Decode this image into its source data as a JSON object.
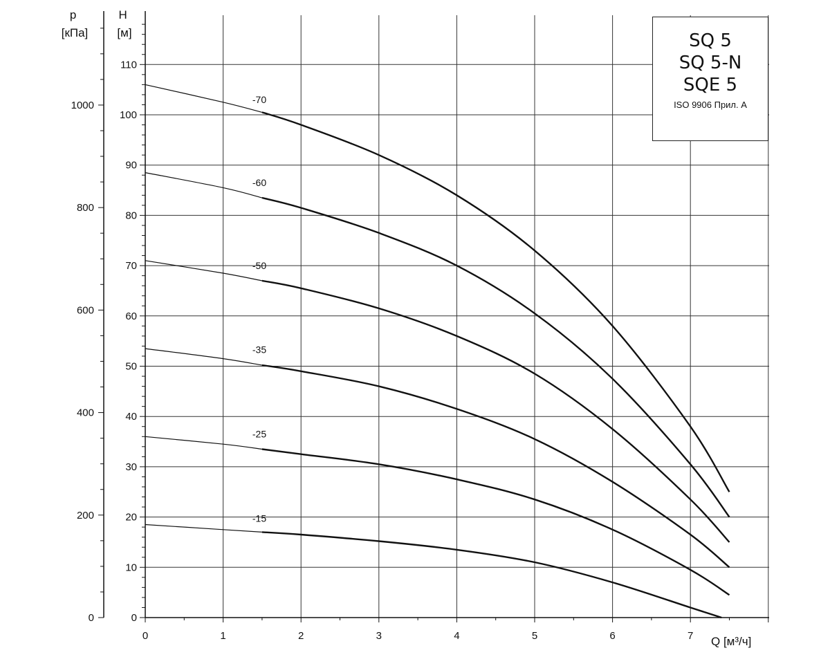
{
  "chart_data": {
    "type": "line",
    "xlabel": "Q [м³/ч]",
    "ylabel_left": "p\n[кПа]",
    "ylabel_right": "H\n[м]",
    "xlim": [
      0,
      8
    ],
    "ylim": [
      0,
      120
    ],
    "x_ticks": [
      0,
      1,
      2,
      3,
      4,
      5,
      6,
      7
    ],
    "y_ticks": [
      0,
      10,
      20,
      30,
      40,
      50,
      60,
      70,
      80,
      90,
      100,
      110
    ],
    "p_ticks": [
      0,
      200,
      400,
      600,
      800,
      1000
    ],
    "p_per_H": 9.81,
    "grid": true,
    "series": [
      {
        "name": "-70",
        "label_at": [
          1.5,
          101.5
        ],
        "x": [
          0,
          1,
          1.5,
          2,
          3,
          4,
          5,
          6,
          7,
          7.5
        ],
        "y": [
          106,
          102.5,
          100.5,
          98,
          92,
          84,
          73,
          58,
          38,
          25
        ]
      },
      {
        "name": "-60",
        "label_at": [
          1.5,
          85
        ],
        "x": [
          0,
          1,
          1.5,
          2,
          3,
          4,
          5,
          6,
          7,
          7.5
        ],
        "y": [
          88.5,
          85.5,
          83.5,
          81.5,
          76.5,
          70,
          60.5,
          47.5,
          30.5,
          20
        ]
      },
      {
        "name": "-50",
        "label_at": [
          1.5,
          68.5
        ],
        "x": [
          0,
          1,
          1.5,
          2,
          3,
          4,
          5,
          6,
          7,
          7.5
        ],
        "y": [
          71,
          68.5,
          67,
          65.5,
          61.5,
          56,
          48.5,
          37.5,
          23.5,
          15
        ]
      },
      {
        "name": "-35",
        "label_at": [
          1.5,
          51.8
        ],
        "x": [
          0,
          1,
          1.5,
          2,
          3,
          4,
          5,
          6,
          7,
          7.5
        ],
        "y": [
          53.5,
          51.5,
          50.2,
          49,
          46,
          41.5,
          35.5,
          27,
          16.5,
          10
        ]
      },
      {
        "name": "-25",
        "label_at": [
          1.5,
          35
        ],
        "x": [
          0,
          1,
          1.5,
          2,
          3,
          4,
          5,
          6,
          7,
          7.5
        ],
        "y": [
          36,
          34.5,
          33.5,
          32.5,
          30.5,
          27.5,
          23.5,
          17.5,
          9.5,
          4.5
        ]
      },
      {
        "name": "-15",
        "label_at": [
          1.5,
          18.2
        ],
        "x": [
          0,
          1,
          1.5,
          2,
          3,
          4,
          5,
          6,
          7,
          7.4
        ],
        "y": [
          18.5,
          17.5,
          17,
          16.5,
          15.2,
          13.5,
          11,
          7,
          2,
          0
        ]
      }
    ]
  },
  "legend": {
    "models": [
      "SQ 5",
      "SQ 5-N",
      "SQE 5"
    ],
    "standard": "ISO 9906 Прил. A"
  }
}
